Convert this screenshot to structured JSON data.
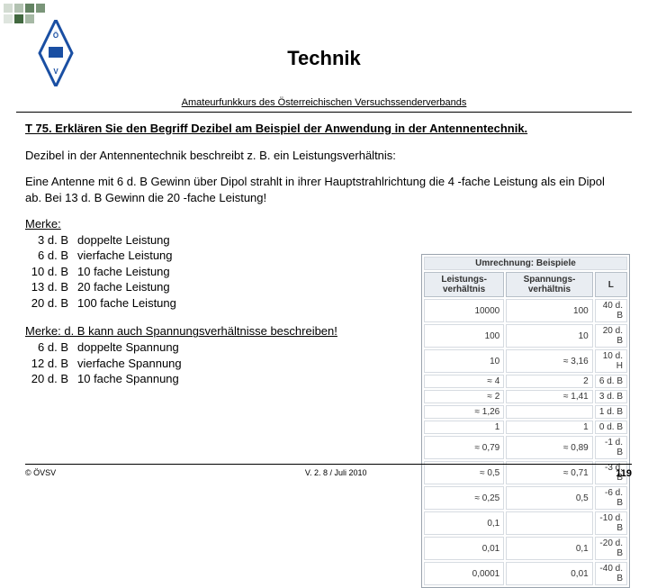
{
  "title": "Technik",
  "subtitle": "Amateurfunkkurs des Österreichischen Versuchssenderverbands",
  "question": "T 75. Erklären Sie den Begriff Dezibel am Beispiel der Anwendung in der Antennentechnik.",
  "para1": "Dezibel in der Antennentechnik beschreibt z. B. ein Leistungsverhältnis:",
  "para2": "Eine Antenne mit 6 d. B Gewinn über Dipol strahlt in ihrer Hauptstrahlrichtung die 4 -fache Leistung als ein Dipol ab. Bei 13 d. B Gewinn die 20 -fache Leistung!",
  "merke1_hdr": "Merke:",
  "merke1": [
    {
      "db": "3 d. B",
      "v": "doppelte Leistung"
    },
    {
      "db": "6 d. B",
      "v": "vierfache Leistung"
    },
    {
      "db": "10 d. B",
      "v": "10 fache Leistung"
    },
    {
      "db": "13 d. B",
      "v": "20 fache Leistung"
    },
    {
      "db": "20 d. B",
      "v": "100 fache Leistung"
    }
  ],
  "merke2_hdr": "Merke: d. B kann auch Spannungsverhältnisse beschreiben!",
  "merke2": [
    {
      "db": "6 d. B",
      "v": "doppelte Spannung"
    },
    {
      "db": "12 d. B",
      "v": "vierfache Spannung"
    },
    {
      "db": "20 d. B",
      "v": "10 fache Spannung"
    }
  ],
  "table": {
    "caption": "Umrechnung: Beispiele",
    "head": [
      "Leistungs-\nverhältnis",
      "Spannungs-\nverhältnis",
      "L"
    ],
    "rows": [
      [
        "10000",
        "100",
        "40 d. B"
      ],
      [
        "100",
        "10",
        "20 d. B"
      ],
      [
        "10",
        "≈ 3,16",
        "10 d. H"
      ],
      [
        "≈ 4",
        "2",
        "6 d. B"
      ],
      [
        "≈ 2",
        "≈ 1,41",
        "3 d. B"
      ],
      [
        "≈ 1,26",
        "",
        "1 d. B"
      ],
      [
        "1",
        "1",
        "0 d. B"
      ],
      [
        "≈ 0,79",
        "≈ 0,89",
        "-1 d. B"
      ],
      [
        "≈ 0,5",
        "≈ 0,71",
        "-3 d. B"
      ],
      [
        "≈ 0,25",
        "0,5",
        "-6 d. B"
      ],
      [
        "0,1",
        "",
        "-10 d. B"
      ],
      [
        "0,01",
        "0,1",
        "-20 d. B"
      ],
      [
        "0,0001",
        "0,01",
        "-40 d. B"
      ]
    ]
  },
  "footer_left": "© ÖVSV",
  "footer_center": "V. 2. 8 / Juli 2010",
  "footer_page": "119"
}
